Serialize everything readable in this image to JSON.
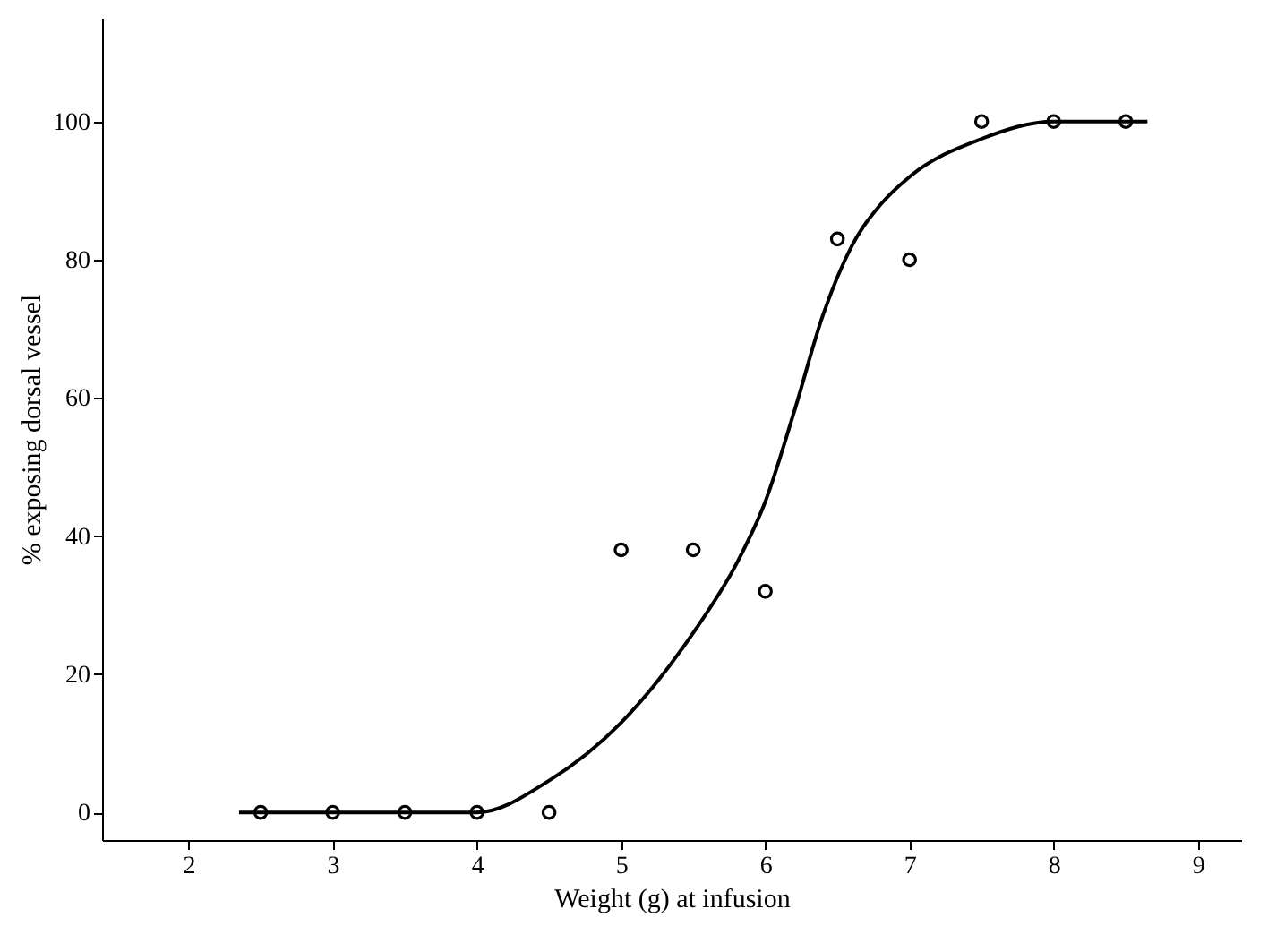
{
  "chart_data": {
    "type": "scatter",
    "xlabel": "Weight (g) at infusion",
    "ylabel": "% exposing dorsal vessel",
    "xlim": [
      1.4,
      9.3
    ],
    "xticks": [
      2,
      3,
      4,
      5,
      6,
      7,
      8,
      9
    ],
    "ylim": [
      -4,
      115
    ],
    "yticks": [
      0,
      20,
      40,
      60,
      80,
      100
    ],
    "grid": false,
    "series": [
      {
        "marker": "circle",
        "color": "#000000",
        "x": [
          2.5,
          3,
          3.5,
          4,
          4.5,
          5,
          5.5,
          6,
          6.5,
          7,
          7.5,
          8,
          8.5
        ],
        "values": [
          0,
          0,
          0,
          0,
          0,
          38,
          38,
          32,
          83,
          80,
          100,
          100,
          100
        ]
      },
      {
        "type": "line",
        "color": "#000000",
        "line_style": "solid",
        "x": [
          2.35,
          4,
          4.5,
          5,
          5.5,
          5.8,
          6,
          6.2,
          6.4,
          6.6,
          6.8,
          7,
          7.5,
          8,
          8.65
        ],
        "values": [
          0,
          0,
          4.6,
          13,
          26,
          36,
          45,
          58,
          72,
          82,
          88,
          92,
          97.5,
          100,
          100
        ]
      }
    ]
  }
}
